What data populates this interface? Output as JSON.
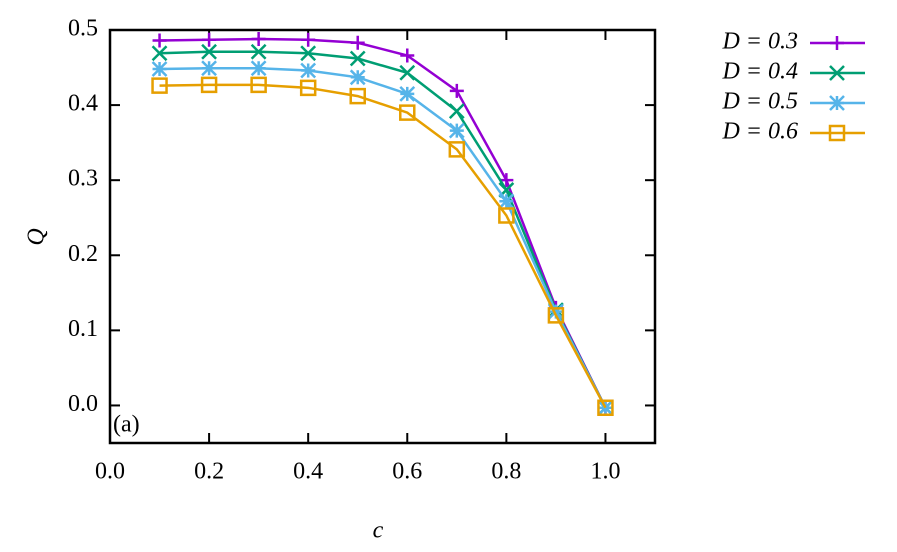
{
  "chart_data": {
    "type": "line",
    "x": [
      0.1,
      0.2,
      0.3,
      0.4,
      0.5,
      0.6,
      0.7,
      0.8,
      0.9,
      1.0
    ],
    "series": [
      {
        "name": "D = 0.3",
        "color": "#9400d3",
        "marker": "plus",
        "values": [
          0.486,
          0.487,
          0.488,
          0.487,
          0.483,
          0.466,
          0.419,
          0.3,
          0.13,
          -0.003
        ]
      },
      {
        "name": "D = 0.4",
        "color": "#009e73",
        "marker": "cross",
        "values": [
          0.469,
          0.471,
          0.471,
          0.469,
          0.462,
          0.443,
          0.392,
          0.287,
          0.127,
          -0.003
        ]
      },
      {
        "name": "D = 0.5",
        "color": "#56b4e9",
        "marker": "star",
        "values": [
          0.448,
          0.449,
          0.449,
          0.446,
          0.437,
          0.415,
          0.366,
          0.272,
          0.125,
          -0.003
        ]
      },
      {
        "name": "D = 0.6",
        "color": "#e69f00",
        "marker": "square",
        "values": [
          0.426,
          0.427,
          0.427,
          0.423,
          0.412,
          0.39,
          0.341,
          0.253,
          0.12,
          -0.003
        ]
      }
    ],
    "xlabel": "c",
    "ylabel": "Q",
    "annotation": "(a)",
    "xlim": [
      0,
      1.1
    ],
    "ylim": [
      -0.05,
      0.5
    ],
    "xticks": [
      {
        "value": 0,
        "label": "0.0"
      },
      0.2,
      0.4,
      0.6,
      0.8,
      {
        "value": 1,
        "label": "1.0"
      }
    ],
    "yticks": [
      {
        "value": 0,
        "label": "0.0"
      },
      0.1,
      0.2,
      0.3,
      0.4,
      0.5
    ],
    "legend": "outside-right"
  }
}
